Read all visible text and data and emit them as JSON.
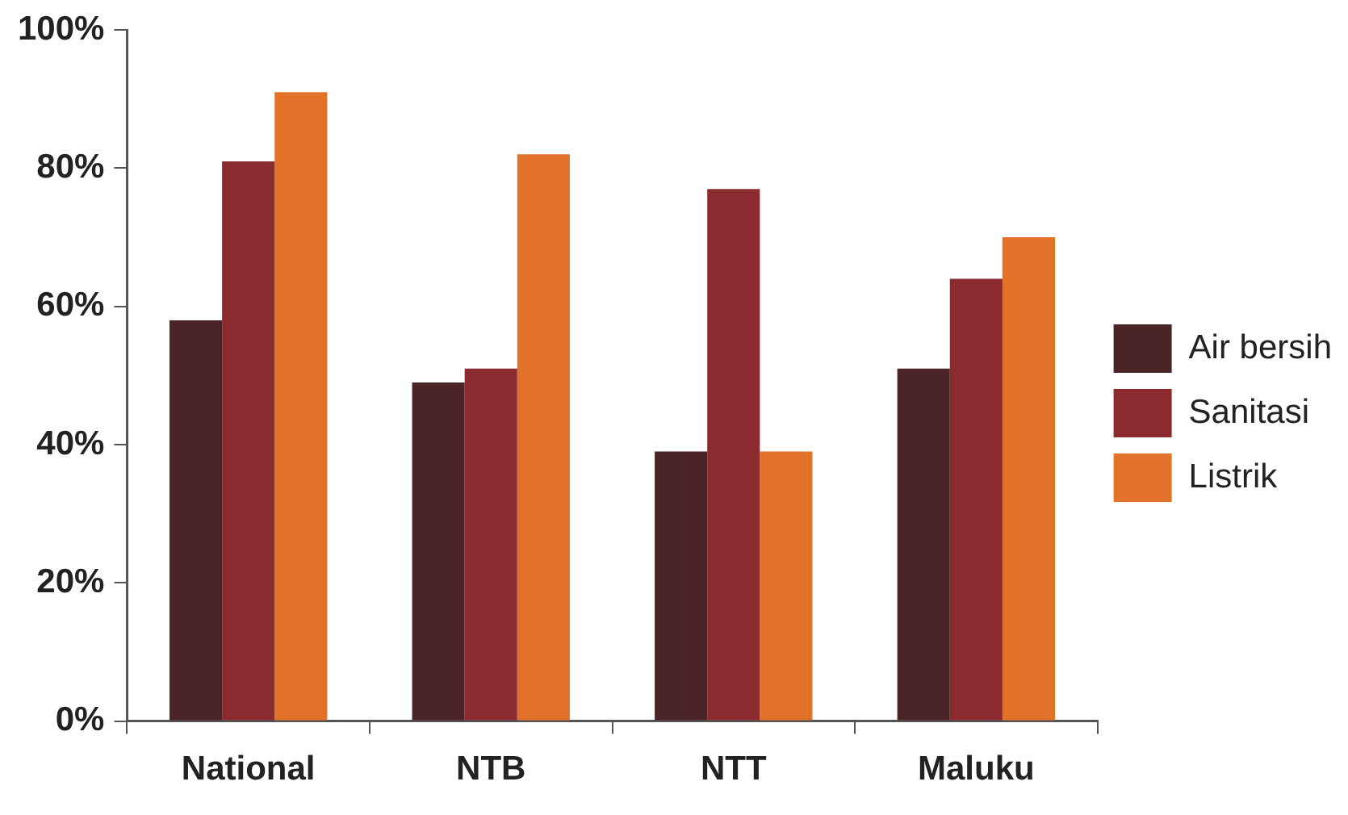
{
  "chart_data": {
    "type": "bar",
    "categories": [
      "National",
      "NTB",
      "NTT",
      "Maluku"
    ],
    "series": [
      {
        "name": "Air bersih",
        "color": "#4a2426",
        "values": [
          58,
          49,
          39,
          51
        ]
      },
      {
        "name": "Sanitasi",
        "color": "#8b2a2f",
        "values": [
          81,
          51,
          77,
          64
        ]
      },
      {
        "name": "Listrik",
        "color": "#e2712a",
        "values": [
          91,
          82,
          39,
          70
        ]
      }
    ],
    "ylim": [
      0,
      100
    ],
    "yticks": [
      {
        "value": 0,
        "label": "0%"
      },
      {
        "value": 20,
        "label": "20%"
      },
      {
        "value": 40,
        "label": "40%"
      },
      {
        "value": 60,
        "label": "60%"
      },
      {
        "value": 80,
        "label": "80%"
      },
      {
        "value": 100,
        "label": "100%"
      }
    ],
    "grid": false,
    "legend": "right"
  }
}
